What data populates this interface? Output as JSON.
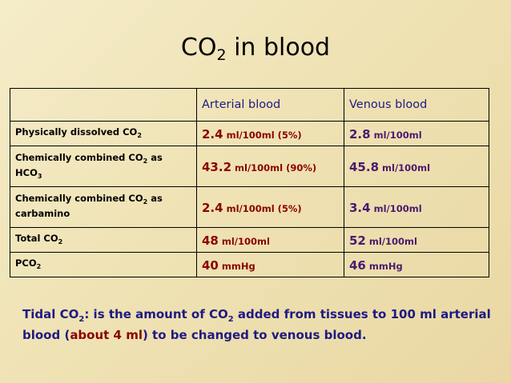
{
  "title": {
    "main": "CO",
    "sub": "2",
    "rest": " in blood"
  },
  "table": {
    "header": {
      "arterial": "Arterial blood",
      "venous": "Venous blood"
    },
    "rows": [
      {
        "label_a": "Physically dissolved CO",
        "label_sub": "2",
        "label_b": "",
        "label_sub2": "",
        "art_num": "2.4",
        "art_unit": " ml/100ml (5%)",
        "ven_num": "2.8",
        "ven_unit": " ml/100ml"
      },
      {
        "label_a": "Chemically combined CO",
        "label_sub": "2",
        "label_b": " as HCO",
        "label_sub2": "3",
        "art_num": "43.2",
        "art_unit": " ml/100ml (90%)",
        "ven_num": "45.8",
        "ven_unit": " ml/100ml"
      },
      {
        "label_a": "Chemically combined CO",
        "label_sub": "2",
        "label_b": " as carbamino",
        "label_sub2": "",
        "art_num": "2.4",
        "art_unit": " ml/100ml (5%)",
        "ven_num": "3.4",
        "ven_unit": " ml/100ml"
      },
      {
        "label_a": "Total CO",
        "label_sub": "2",
        "label_b": "",
        "label_sub2": "",
        "art_num": "48",
        "art_unit": " ml/100ml",
        "ven_num": "52",
        "ven_unit": " ml/100ml"
      },
      {
        "label_a": "PCO",
        "label_sub": "2",
        "label_b": "",
        "label_sub2": "",
        "art_num": "40",
        "art_unit": " mmHg",
        "ven_num": "46",
        "ven_unit": " mmHg"
      }
    ]
  },
  "note": {
    "term": "Tidal CO",
    "term_sub": "2",
    "colon": ":",
    "text1": " is the amount of CO",
    "text1_sub": "2",
    "text2": " added from tissues to 100 ml arterial blood (",
    "highlight": "about 4 ml",
    "text3": ") to be changed to venous blood."
  },
  "colors": {
    "arterial": "#8b0000",
    "venous": "#4b1a6e",
    "header": "#1f1a82",
    "background": "#efe2b4"
  }
}
